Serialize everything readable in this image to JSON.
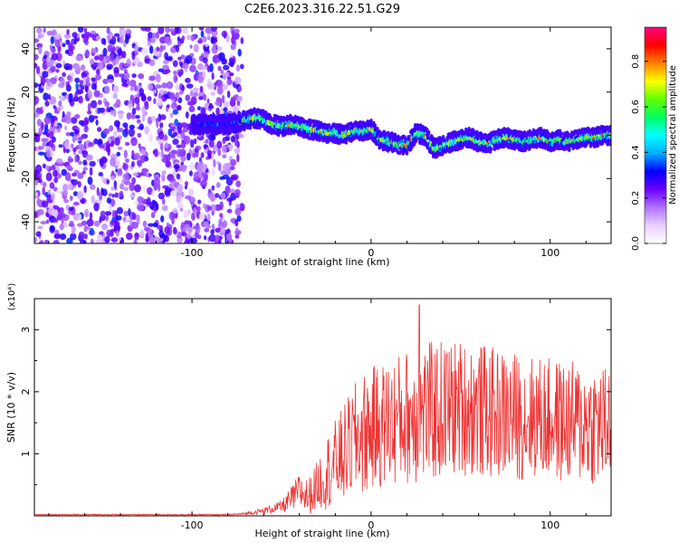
{
  "figure_title": "C2E6.2023.316.22.51.G29",
  "chart_data": [
    {
      "type": "heatmap",
      "xlabel": "Height of straight line (km)",
      "ylabel": "Frequency (Hz)",
      "xlim": [
        -188,
        134
      ],
      "ylim": [
        -50,
        50
      ],
      "xticks": [
        -100,
        0,
        100
      ],
      "xtick_labels": [
        "-100",
        "0",
        "100"
      ],
      "yticks": [
        -40,
        -20,
        0,
        20,
        40
      ],
      "ytick_labels": [
        "-40",
        "-20",
        "0",
        "20",
        "40"
      ],
      "colorbar": {
        "label": "Normalized spectral amplitude",
        "range": [
          0.0,
          0.95
        ],
        "ticks": [
          0.0,
          0.2,
          0.4,
          0.6,
          0.8
        ],
        "tick_labels": [
          "0.0",
          "0.2",
          "0.4",
          "0.6",
          "0.8"
        ],
        "colormap": [
          "#ffffff",
          "#e8d0ff",
          "#b070ff",
          "#6a00ff",
          "#0000ff",
          "#00b0ff",
          "#00ffff",
          "#00ff60",
          "#60ff00",
          "#ffff00",
          "#ff8000",
          "#ff0000",
          "#ff0080"
        ]
      },
      "noise_region": {
        "x_range": [
          -188,
          -72
        ],
        "freq_range": [
          -50,
          50
        ],
        "amplitude": [
          0.05,
          0.25
        ]
      },
      "signal_track": {
        "x": [
          -100,
          -80,
          -75,
          -70,
          -65,
          -60,
          -55,
          -50,
          -45,
          -40,
          -35,
          -30,
          -25,
          -20,
          -15,
          -10,
          -5,
          0,
          5,
          10,
          15,
          20,
          25,
          30,
          35,
          40,
          45,
          50,
          55,
          60,
          65,
          70,
          75,
          80,
          85,
          90,
          95,
          100,
          105,
          110,
          115,
          120,
          125,
          130,
          134
        ],
        "freq": [
          5,
          5,
          6,
          7,
          8,
          7,
          5,
          4,
          5,
          4,
          3,
          2,
          1,
          1,
          0,
          2,
          2,
          3,
          -2,
          -3,
          -4,
          -5,
          1,
          0,
          -6,
          -5,
          -3,
          -2,
          -1,
          -3,
          -4,
          -2,
          -1,
          -2,
          -3,
          -2,
          -1,
          -3,
          -2,
          -3,
          -2,
          -1,
          -1,
          0,
          0
        ],
        "width_hz": 6,
        "peak_amplitude": 0.9
      }
    },
    {
      "type": "line",
      "xlabel": "Height of straight line (km)",
      "ylabel": "SNR (10 * v/v)",
      "multiplier": "(x10⁴)",
      "xlim": [
        -188,
        134
      ],
      "ylim": [
        0,
        3.5
      ],
      "xticks": [
        -100,
        0,
        100
      ],
      "xtick_labels": [
        "-100",
        "0",
        "100"
      ],
      "yticks": [
        1,
        2,
        3
      ],
      "ytick_labels": [
        "1",
        "2",
        "3"
      ],
      "color": "#ee3333",
      "envelope": {
        "x": [
          -188,
          -80,
          -72,
          -60,
          -50,
          -45,
          -40,
          -35,
          -30,
          -25,
          -20,
          -15,
          -10,
          -5,
          0,
          10,
          20,
          30,
          40,
          50,
          60,
          70,
          80,
          90,
          100,
          110,
          120,
          130,
          134
        ],
        "mean": [
          0.02,
          0.02,
          0.03,
          0.08,
          0.15,
          0.25,
          0.4,
          0.3,
          0.5,
          0.7,
          0.85,
          1.0,
          1.2,
          1.3,
          1.4,
          1.5,
          1.6,
          1.65,
          1.7,
          1.75,
          1.7,
          1.65,
          1.6,
          1.6,
          1.55,
          1.5,
          1.5,
          1.45,
          1.45
        ],
        "spread": [
          0.01,
          0.01,
          0.02,
          0.05,
          0.1,
          0.2,
          0.3,
          0.3,
          0.4,
          0.6,
          0.7,
          0.8,
          0.9,
          1.0,
          1.0,
          1.05,
          1.1,
          1.15,
          1.15,
          1.1,
          1.1,
          1.05,
          1.05,
          1.0,
          1.0,
          1.0,
          1.0,
          1.0,
          1.0
        ]
      },
      "peak": {
        "x": 27,
        "y": 3.4
      }
    }
  ]
}
